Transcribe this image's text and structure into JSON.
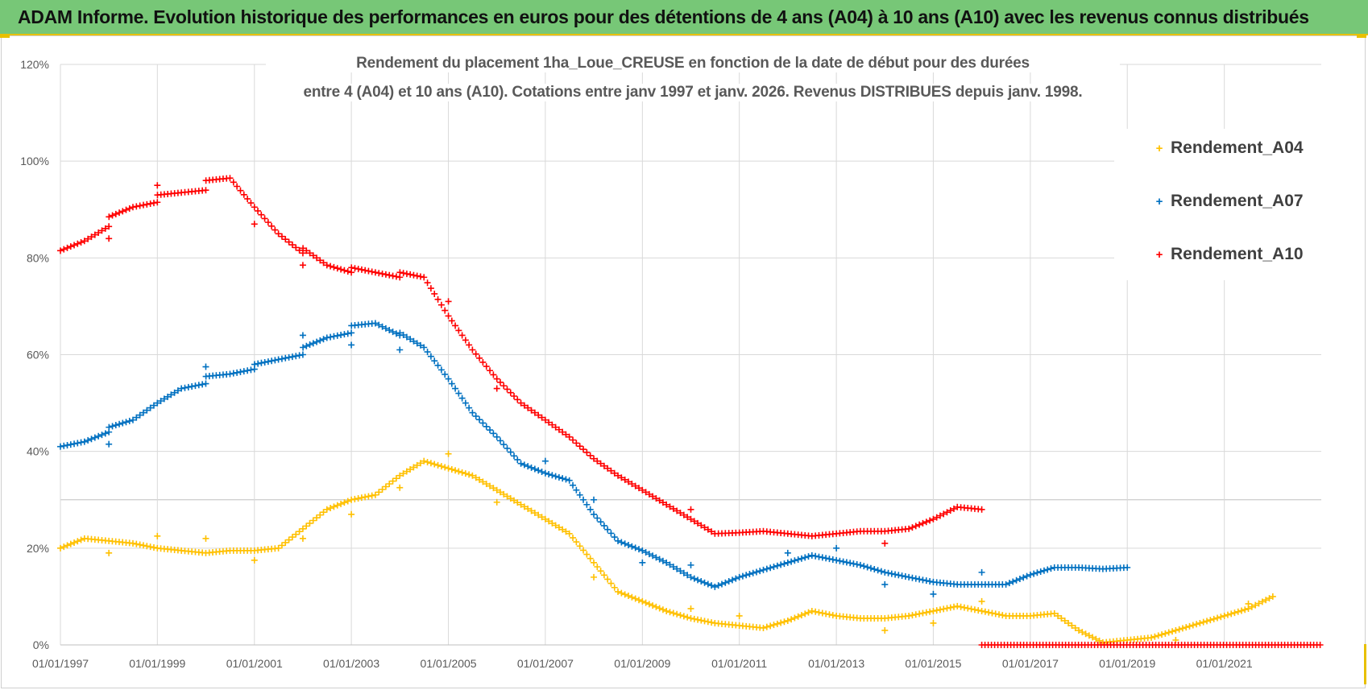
{
  "banner": {
    "title": "ADAM Informe. Evolution historique des performances en euros pour des détentions de 4 ans (A04) à 10 ans (A10) avec les revenus connus distribués"
  },
  "colors": {
    "A04": "#ffc000",
    "A07": "#0070c0",
    "A10": "#ff0000",
    "banner": "#77c777"
  },
  "chart_data": {
    "type": "scatter",
    "title_line1": "Rendement du placement 1ha_Loue_CREUSE en fonction de la date de début pour des durées",
    "title_line2": "entre 4 (A04) et 10 ans (A10). Cotations entre janv 1997 et janv. 2026. Revenus DISTRIBUES depuis janv. 1998.",
    "xlabel": "",
    "ylabel": "",
    "xlim": [
      "1997-01-01",
      "2023-01-01"
    ],
    "ylim": [
      0,
      1.2
    ],
    "y_ticks": [
      "0%",
      "20%",
      "40%",
      "60%",
      "80%",
      "100%",
      "120%"
    ],
    "x_ticks": [
      "01/01/1997",
      "01/01/1999",
      "01/01/2001",
      "01/01/2003",
      "01/01/2005",
      "01/01/2007",
      "01/01/2009",
      "01/01/2011",
      "01/01/2013",
      "01/01/2015",
      "01/01/2017",
      "01/01/2019",
      "01/01/2021"
    ],
    "grid": true,
    "legend_position": "right",
    "series": [
      {
        "name": "Rendement_A04",
        "color": "#ffc000",
        "points": [
          [
            "1997-01-01",
            0.2
          ],
          [
            "1997-07-01",
            0.22
          ],
          [
            "1998-01-01",
            0.215
          ],
          [
            "1998-07-01",
            0.21
          ],
          [
            "1999-01-01",
            0.2
          ],
          [
            "1999-07-01",
            0.195
          ],
          [
            "2000-01-01",
            0.19
          ],
          [
            "2000-07-01",
            0.195
          ],
          [
            "2001-01-01",
            0.195
          ],
          [
            "2001-07-01",
            0.2
          ],
          [
            "2002-01-01",
            0.24
          ],
          [
            "2002-07-01",
            0.28
          ],
          [
            "2003-01-01",
            0.3
          ],
          [
            "2003-07-01",
            0.31
          ],
          [
            "2004-01-01",
            0.35
          ],
          [
            "2004-07-01",
            0.38
          ],
          [
            "2005-01-01",
            0.365
          ],
          [
            "2005-07-01",
            0.35
          ],
          [
            "2006-01-01",
            0.32
          ],
          [
            "2006-07-01",
            0.29
          ],
          [
            "2007-01-01",
            0.26
          ],
          [
            "2007-07-01",
            0.23
          ],
          [
            "2008-01-01",
            0.17
          ],
          [
            "2008-07-01",
            0.11
          ],
          [
            "2009-01-01",
            0.09
          ],
          [
            "2009-07-01",
            0.07
          ],
          [
            "2010-01-01",
            0.055
          ],
          [
            "2010-07-01",
            0.045
          ],
          [
            "2011-01-01",
            0.04
          ],
          [
            "2011-07-01",
            0.035
          ],
          [
            "2012-01-01",
            0.05
          ],
          [
            "2012-07-01",
            0.07
          ],
          [
            "2013-01-01",
            0.06
          ],
          [
            "2013-07-01",
            0.055
          ],
          [
            "2014-01-01",
            0.055
          ],
          [
            "2014-07-01",
            0.06
          ],
          [
            "2015-01-01",
            0.07
          ],
          [
            "2015-07-01",
            0.08
          ],
          [
            "2016-01-01",
            0.07
          ],
          [
            "2016-07-01",
            0.06
          ],
          [
            "2017-01-01",
            0.06
          ],
          [
            "2017-07-01",
            0.065
          ],
          [
            "2018-01-01",
            0.03
          ],
          [
            "2018-07-01",
            0.005
          ],
          [
            "2019-01-01",
            0.01
          ],
          [
            "2019-07-01",
            0.015
          ],
          [
            "2020-01-01",
            0.03
          ],
          [
            "2020-07-01",
            0.045
          ],
          [
            "2021-01-01",
            0.06
          ],
          [
            "2021-07-01",
            0.075
          ],
          [
            "2022-01-01",
            0.1
          ]
        ],
        "outliers": [
          [
            "1998-01-01",
            0.19
          ],
          [
            "1999-01-01",
            0.225
          ],
          [
            "2000-01-01",
            0.22
          ],
          [
            "2001-01-01",
            0.175
          ],
          [
            "2002-01-01",
            0.22
          ],
          [
            "2003-01-01",
            0.27
          ],
          [
            "2004-01-01",
            0.325
          ],
          [
            "2005-01-01",
            0.395
          ],
          [
            "2006-01-01",
            0.295
          ],
          [
            "2008-01-01",
            0.14
          ],
          [
            "2010-01-01",
            0.075
          ],
          [
            "2011-01-01",
            0.06
          ],
          [
            "2014-01-01",
            0.03
          ],
          [
            "2015-01-01",
            0.045
          ],
          [
            "2016-01-01",
            0.09
          ],
          [
            "2020-01-01",
            0.01
          ],
          [
            "2021-07-01",
            0.085
          ]
        ]
      },
      {
        "name": "Rendement_A07",
        "color": "#0070c0",
        "points": [
          [
            "1997-01-01",
            0.41
          ],
          [
            "1997-07-01",
            0.42
          ],
          [
            "1998-01-01",
            0.44
          ],
          [
            "1998-01-02",
            0.45
          ],
          [
            "1998-07-01",
            0.465
          ],
          [
            "1999-01-01",
            0.5
          ],
          [
            "1999-07-01",
            0.53
          ],
          [
            "2000-01-01",
            0.54
          ],
          [
            "2000-01-02",
            0.555
          ],
          [
            "2000-07-01",
            0.56
          ],
          [
            "2001-01-01",
            0.57
          ],
          [
            "2001-01-02",
            0.58
          ],
          [
            "2001-07-01",
            0.59
          ],
          [
            "2002-01-01",
            0.6
          ],
          [
            "2002-01-02",
            0.615
          ],
          [
            "2002-07-01",
            0.635
          ],
          [
            "2003-01-01",
            0.645
          ],
          [
            "2003-01-02",
            0.66
          ],
          [
            "2003-07-01",
            0.665
          ],
          [
            "2004-01-01",
            0.64
          ],
          [
            "2004-01-02",
            0.645
          ],
          [
            "2004-07-01",
            0.615
          ],
          [
            "2005-01-01",
            0.55
          ],
          [
            "2005-07-01",
            0.48
          ],
          [
            "2006-01-01",
            0.43
          ],
          [
            "2006-07-01",
            0.375
          ],
          [
            "2007-01-01",
            0.355
          ],
          [
            "2007-07-01",
            0.34
          ],
          [
            "2008-01-01",
            0.27
          ],
          [
            "2008-07-01",
            0.215
          ],
          [
            "2009-01-01",
            0.195
          ],
          [
            "2009-07-01",
            0.17
          ],
          [
            "2010-01-01",
            0.14
          ],
          [
            "2010-07-01",
            0.12
          ],
          [
            "2011-01-01",
            0.14
          ],
          [
            "2011-07-01",
            0.155
          ],
          [
            "2012-01-01",
            0.17
          ],
          [
            "2012-07-01",
            0.185
          ],
          [
            "2013-01-01",
            0.175
          ],
          [
            "2013-07-01",
            0.165
          ],
          [
            "2014-01-01",
            0.15
          ],
          [
            "2014-07-01",
            0.14
          ],
          [
            "2015-01-01",
            0.13
          ],
          [
            "2015-07-01",
            0.125
          ],
          [
            "2016-01-01",
            0.125
          ],
          [
            "2016-07-01",
            0.125
          ],
          [
            "2017-01-01",
            0.145
          ],
          [
            "2017-07-01",
            0.16
          ],
          [
            "2018-01-01",
            0.16
          ],
          [
            "2018-07-01",
            0.157
          ],
          [
            "2019-01-01",
            0.16
          ]
        ],
        "outliers": [
          [
            "1998-01-01",
            0.415
          ],
          [
            "2000-01-01",
            0.575
          ],
          [
            "2002-01-01",
            0.64
          ],
          [
            "2003-01-01",
            0.62
          ],
          [
            "2004-01-01",
            0.61
          ],
          [
            "2007-01-01",
            0.38
          ],
          [
            "2008-01-01",
            0.3
          ],
          [
            "2009-01-01",
            0.17
          ],
          [
            "2010-01-01",
            0.165
          ],
          [
            "2012-01-01",
            0.19
          ],
          [
            "2013-01-01",
            0.2
          ],
          [
            "2014-01-01",
            0.125
          ],
          [
            "2015-01-01",
            0.105
          ],
          [
            "2016-01-01",
            0.15
          ]
        ]
      },
      {
        "name": "Rendement_A10",
        "color": "#ff0000",
        "points": [
          [
            "1997-01-01",
            0.815
          ],
          [
            "1997-07-01",
            0.835
          ],
          [
            "1998-01-01",
            0.865
          ],
          [
            "1998-01-02",
            0.885
          ],
          [
            "1998-07-01",
            0.905
          ],
          [
            "1999-01-01",
            0.915
          ],
          [
            "1999-01-02",
            0.93
          ],
          [
            "1999-07-01",
            0.935
          ],
          [
            "2000-01-01",
            0.94
          ],
          [
            "2000-01-02",
            0.96
          ],
          [
            "2000-07-01",
            0.965
          ],
          [
            "2001-01-01",
            0.905
          ],
          [
            "2001-07-01",
            0.85
          ],
          [
            "2002-01-01",
            0.81
          ],
          [
            "2002-01-02",
            0.82
          ],
          [
            "2002-07-01",
            0.785
          ],
          [
            "2003-01-01",
            0.77
          ],
          [
            "2003-01-02",
            0.78
          ],
          [
            "2003-07-01",
            0.77
          ],
          [
            "2004-01-01",
            0.76
          ],
          [
            "2004-01-02",
            0.77
          ],
          [
            "2004-07-01",
            0.76
          ],
          [
            "2005-01-01",
            0.68
          ],
          [
            "2005-07-01",
            0.61
          ],
          [
            "2006-01-01",
            0.55
          ],
          [
            "2006-07-01",
            0.5
          ],
          [
            "2007-01-01",
            0.465
          ],
          [
            "2007-07-01",
            0.43
          ],
          [
            "2008-01-01",
            0.385
          ],
          [
            "2008-07-01",
            0.35
          ],
          [
            "2009-01-01",
            0.32
          ],
          [
            "2009-07-01",
            0.29
          ],
          [
            "2010-01-01",
            0.26
          ],
          [
            "2010-07-01",
            0.23
          ],
          [
            "2011-01-01",
            0.232
          ],
          [
            "2011-07-01",
            0.235
          ],
          [
            "2012-01-01",
            0.23
          ],
          [
            "2012-07-01",
            0.225
          ],
          [
            "2013-01-01",
            0.23
          ],
          [
            "2013-07-01",
            0.235
          ],
          [
            "2014-01-01",
            0.235
          ],
          [
            "2014-07-01",
            0.24
          ],
          [
            "2015-01-01",
            0.26
          ],
          [
            "2015-07-01",
            0.285
          ],
          [
            "2016-01-01",
            0.28
          ]
        ],
        "tail": [
          [
            "2016-01-01",
            0.0
          ],
          [
            "2023-01-01",
            0.0
          ]
        ],
        "outliers": [
          [
            "1998-01-01",
            0.84
          ],
          [
            "1999-01-01",
            0.95
          ],
          [
            "2001-01-01",
            0.87
          ],
          [
            "2002-01-01",
            0.785
          ],
          [
            "2005-01-01",
            0.71
          ],
          [
            "2006-01-01",
            0.53
          ],
          [
            "2010-01-01",
            0.28
          ],
          [
            "2014-01-01",
            0.21
          ]
        ]
      }
    ]
  }
}
